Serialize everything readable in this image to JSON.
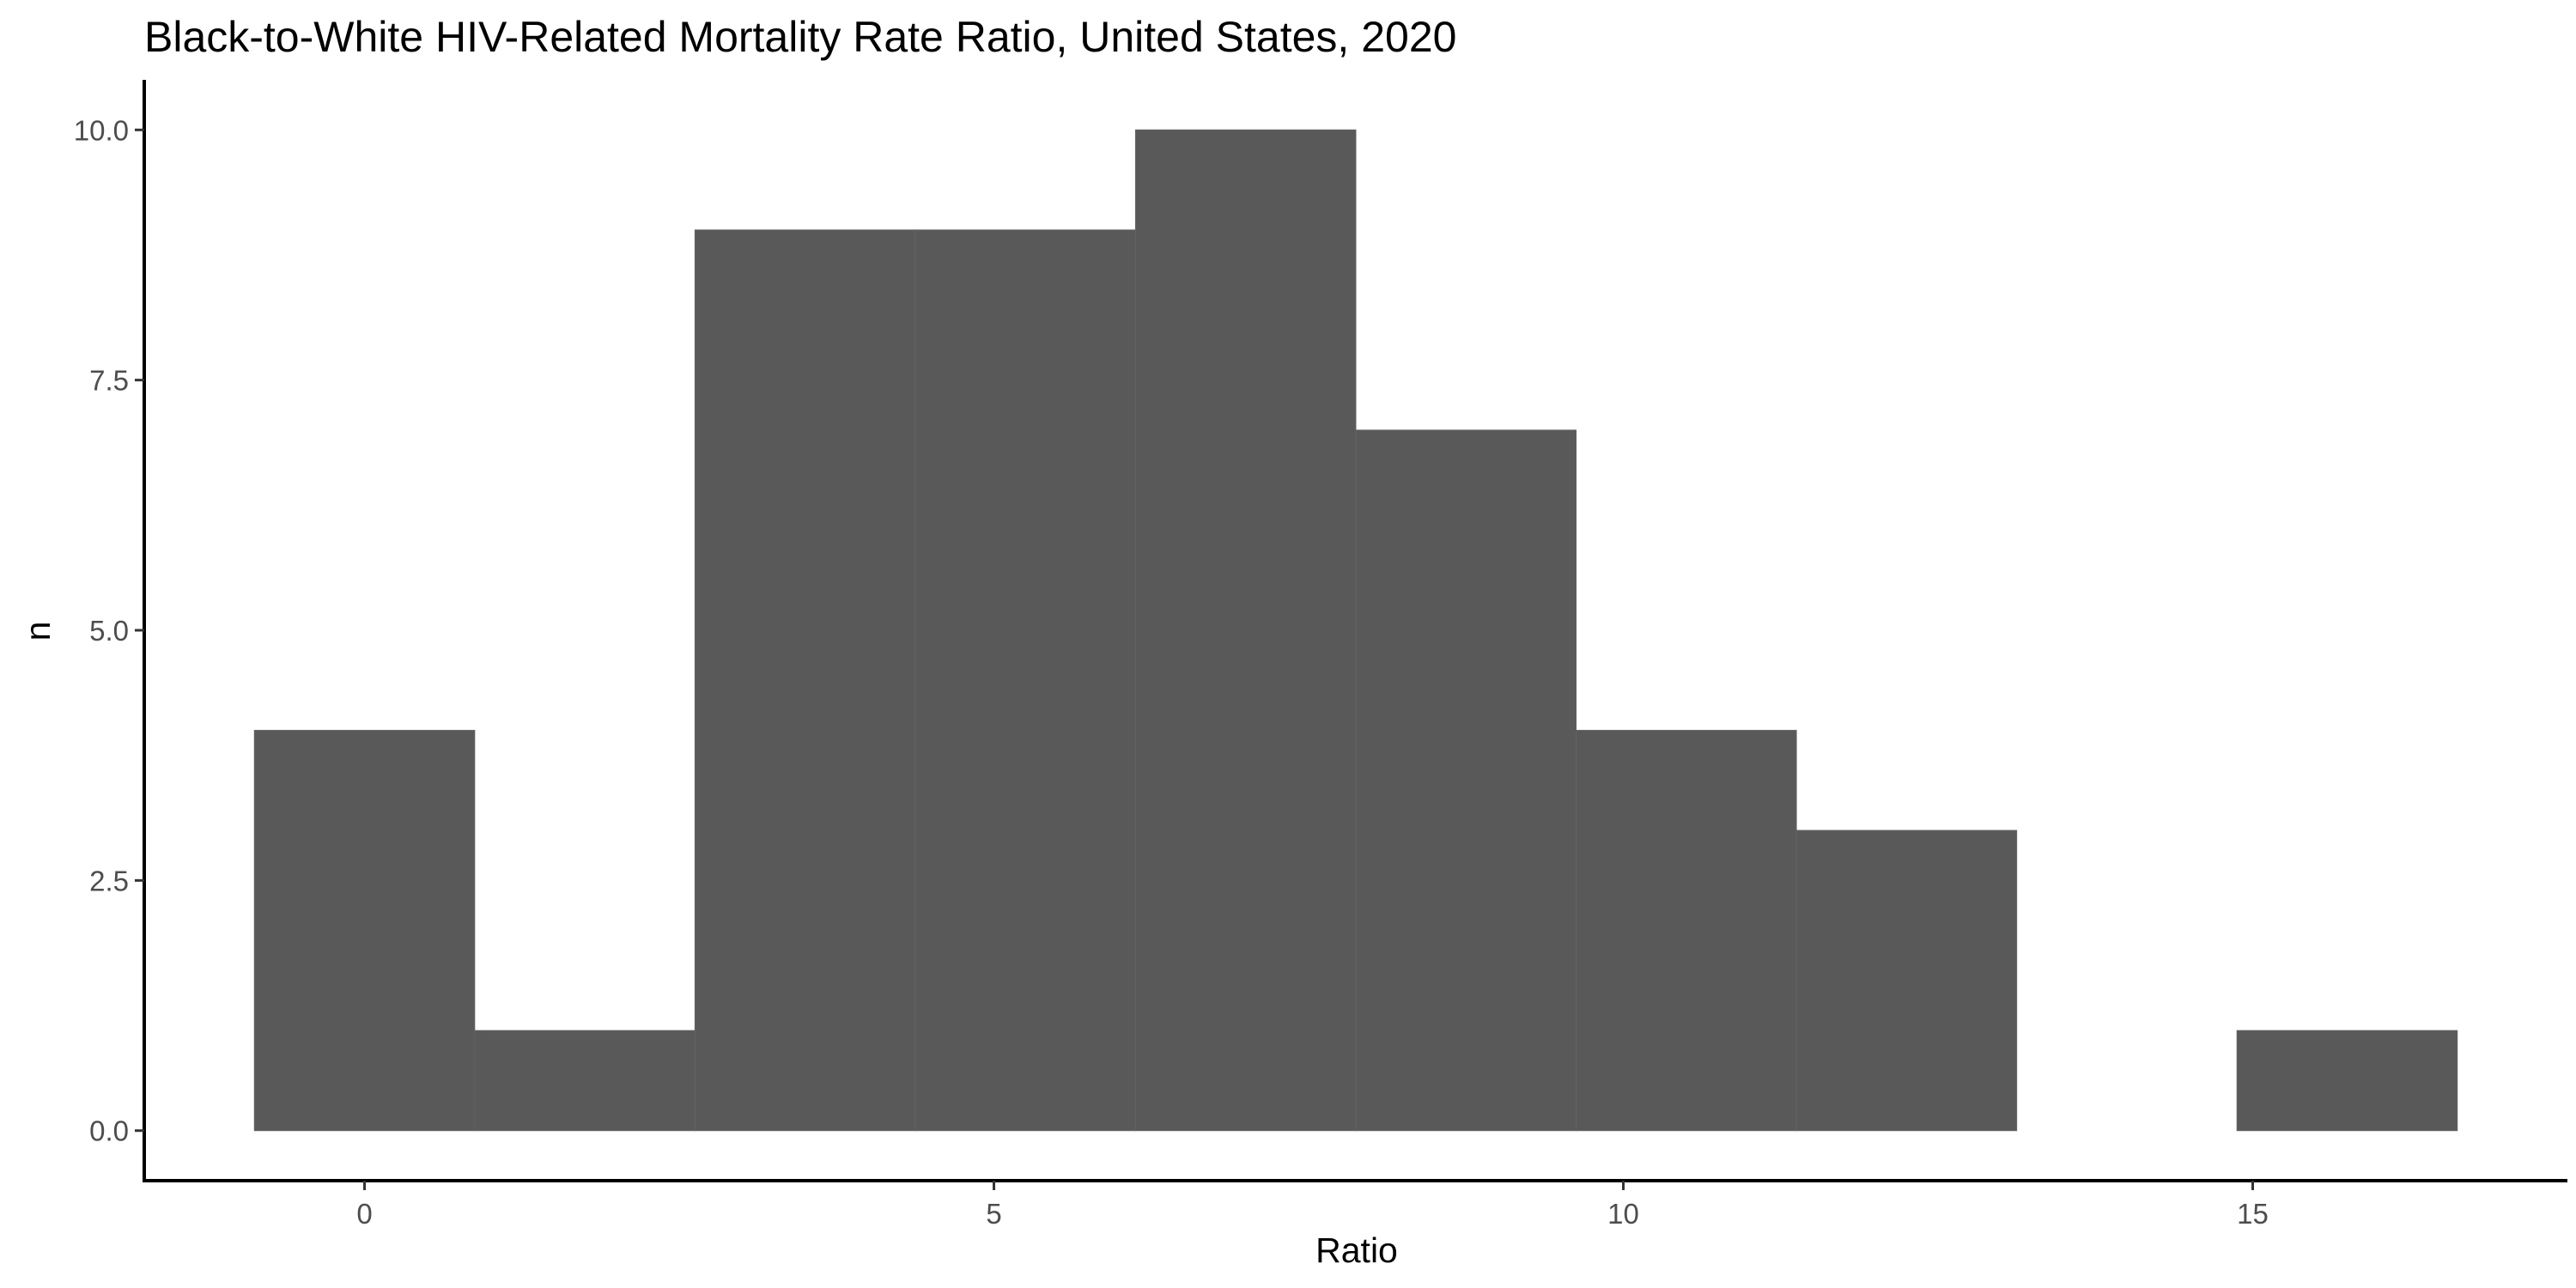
{
  "chart_data": {
    "type": "bar",
    "title": "Black-to-White HIV-Related Mortality Rate Ratio, United States, 2020",
    "xlabel": "Ratio",
    "ylabel": "n",
    "bin_width": 1.75,
    "bins": [
      {
        "x0": -0.875,
        "x1": 0.875,
        "count": 4
      },
      {
        "x0": 0.875,
        "x1": 2.625,
        "count": 1
      },
      {
        "x0": 2.625,
        "x1": 4.375,
        "count": 9
      },
      {
        "x0": 4.375,
        "x1": 6.125,
        "count": 9
      },
      {
        "x0": 6.125,
        "x1": 7.875,
        "count": 10
      },
      {
        "x0": 7.875,
        "x1": 9.625,
        "count": 7
      },
      {
        "x0": 9.625,
        "x1": 11.375,
        "count": 4
      },
      {
        "x0": 11.375,
        "x1": 13.125,
        "count": 3
      },
      {
        "x0": 13.125,
        "x1": 14.875,
        "count": 0
      },
      {
        "x0": 14.875,
        "x1": 16.625,
        "count": 1
      }
    ],
    "xlim": [
      -1.75,
      17.5
    ],
    "ylim": [
      -0.5,
      10.5
    ],
    "xticks": [
      {
        "value": 0,
        "label": "0"
      },
      {
        "value": 5,
        "label": "5"
      },
      {
        "value": 10,
        "label": "10"
      },
      {
        "value": 15,
        "label": "15"
      }
    ],
    "yticks": [
      {
        "value": 0,
        "label": "0.0"
      },
      {
        "value": 2.5,
        "label": "2.5"
      },
      {
        "value": 5,
        "label": "5.0"
      },
      {
        "value": 7.5,
        "label": "7.5"
      },
      {
        "value": 10,
        "label": "10.0"
      }
    ],
    "bar_color": "#595959",
    "grid": false,
    "legend": "none"
  }
}
